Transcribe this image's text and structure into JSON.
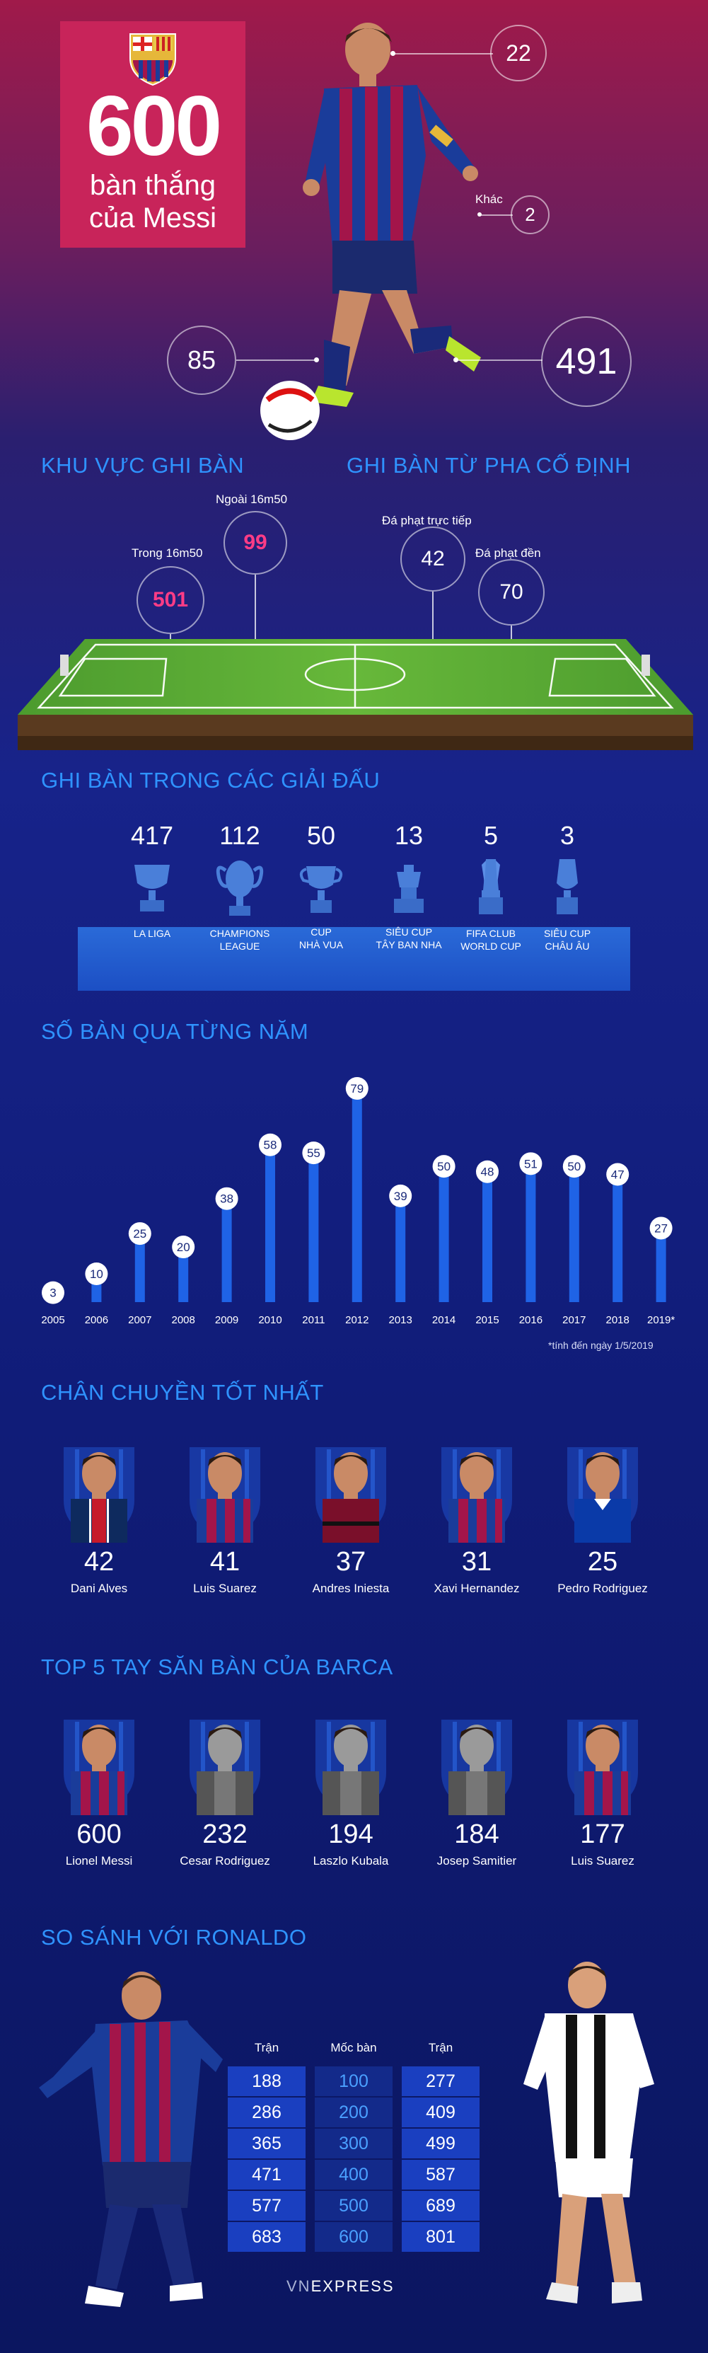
{
  "hero": {
    "number": "600",
    "subtitle_line1": "bàn thắng",
    "subtitle_line2": "của Messi",
    "circles": {
      "top": "22",
      "left": "85",
      "right": "491",
      "other": "2"
    },
    "other_label": "Khác"
  },
  "sections": {
    "area": "KHU VỰC GHI BÀN",
    "set_piece": "GHI BÀN TỪ PHA CỐ ĐỊNH",
    "tournaments": "GHI BÀN TRONG CÁC GIẢI ĐẤU",
    "yearly": "SỐ BÀN QUA TỪNG NĂM",
    "assists": "CHÂN CHUYỀN TỐT NHẤT",
    "top5": "TOP 5 TAY SĂN BÀN CỦA BARCA",
    "ronaldo": "SO SÁNH VỚI RONALDO"
  },
  "field": {
    "inside": {
      "label": "Trong 16m50",
      "value": "501"
    },
    "outside": {
      "label": "Ngoài 16m50",
      "value": "99"
    },
    "free_kick": {
      "label": "Đá phạt trực tiếp",
      "value": "42"
    },
    "penalty": {
      "label": "Đá phạt đền",
      "value": "70"
    }
  },
  "trophies": [
    {
      "count": "417",
      "name1": "LA LIGA",
      "name2": ""
    },
    {
      "count": "112",
      "name1": "CHAMPIONS",
      "name2": "LEAGUE"
    },
    {
      "count": "50",
      "name1": "CUP",
      "name2": "NHÀ VUA"
    },
    {
      "count": "13",
      "name1": "SIÊU CUP",
      "name2": "TÂY BAN NHA"
    },
    {
      "count": "5",
      "name1": "FIFA CLUB",
      "name2": "WORLD CUP"
    },
    {
      "count": "3",
      "name1": "SIÊU CUP",
      "name2": "CHÂU ÂU"
    }
  ],
  "chart_data": {
    "type": "bar",
    "title": "SỐ BÀN QUA TỪNG NĂM",
    "categories": [
      "2005",
      "2006",
      "2007",
      "2008",
      "2009",
      "2010",
      "2011",
      "2012",
      "2013",
      "2014",
      "2015",
      "2016",
      "2017",
      "2018",
      "2019*"
    ],
    "values": [
      3,
      10,
      25,
      20,
      38,
      58,
      55,
      79,
      39,
      50,
      48,
      51,
      50,
      47,
      27
    ],
    "ylim": [
      0,
      79
    ],
    "grid": false,
    "note": "*tính đến ngày 1/5/2019"
  },
  "assists": [
    {
      "count": "42",
      "name": "Dani Alves",
      "kit": "psg"
    },
    {
      "count": "41",
      "name": "Luis Suarez",
      "kit": "barca"
    },
    {
      "count": "37",
      "name": "Andres Iniesta",
      "kit": "vissel"
    },
    {
      "count": "31",
      "name": "Xavi Hernandez",
      "kit": "barca"
    },
    {
      "count": "25",
      "name": "Pedro Rodriguez",
      "kit": "chelsea"
    }
  ],
  "top_scorers": [
    {
      "count": "600",
      "name": "Lionel Messi",
      "kit": "barca"
    },
    {
      "count": "232",
      "name": "Cesar Rodriguez",
      "kit": "bw"
    },
    {
      "count": "194",
      "name": "Laszlo Kubala",
      "kit": "bw"
    },
    {
      "count": "184",
      "name": "Josep Samitier",
      "kit": "bw"
    },
    {
      "count": "177",
      "name": "Luis Suarez",
      "kit": "barca"
    }
  ],
  "ronaldo": {
    "head_left": "Trận",
    "head_mid": "Mốc bàn",
    "head_right": "Trận",
    "rows": [
      [
        "188",
        "100",
        "277"
      ],
      [
        "286",
        "200",
        "409"
      ],
      [
        "365",
        "300",
        "499"
      ],
      [
        "471",
        "400",
        "587"
      ],
      [
        "577",
        "500",
        "689"
      ],
      [
        "683",
        "600",
        "801"
      ]
    ]
  },
  "brand": {
    "logo_a": "VN",
    "logo_b": "EXPRESS"
  },
  "colors": {
    "accent_blue": "#2f93ff",
    "pink": "#ff3c86",
    "bar": "#1f63e6"
  }
}
